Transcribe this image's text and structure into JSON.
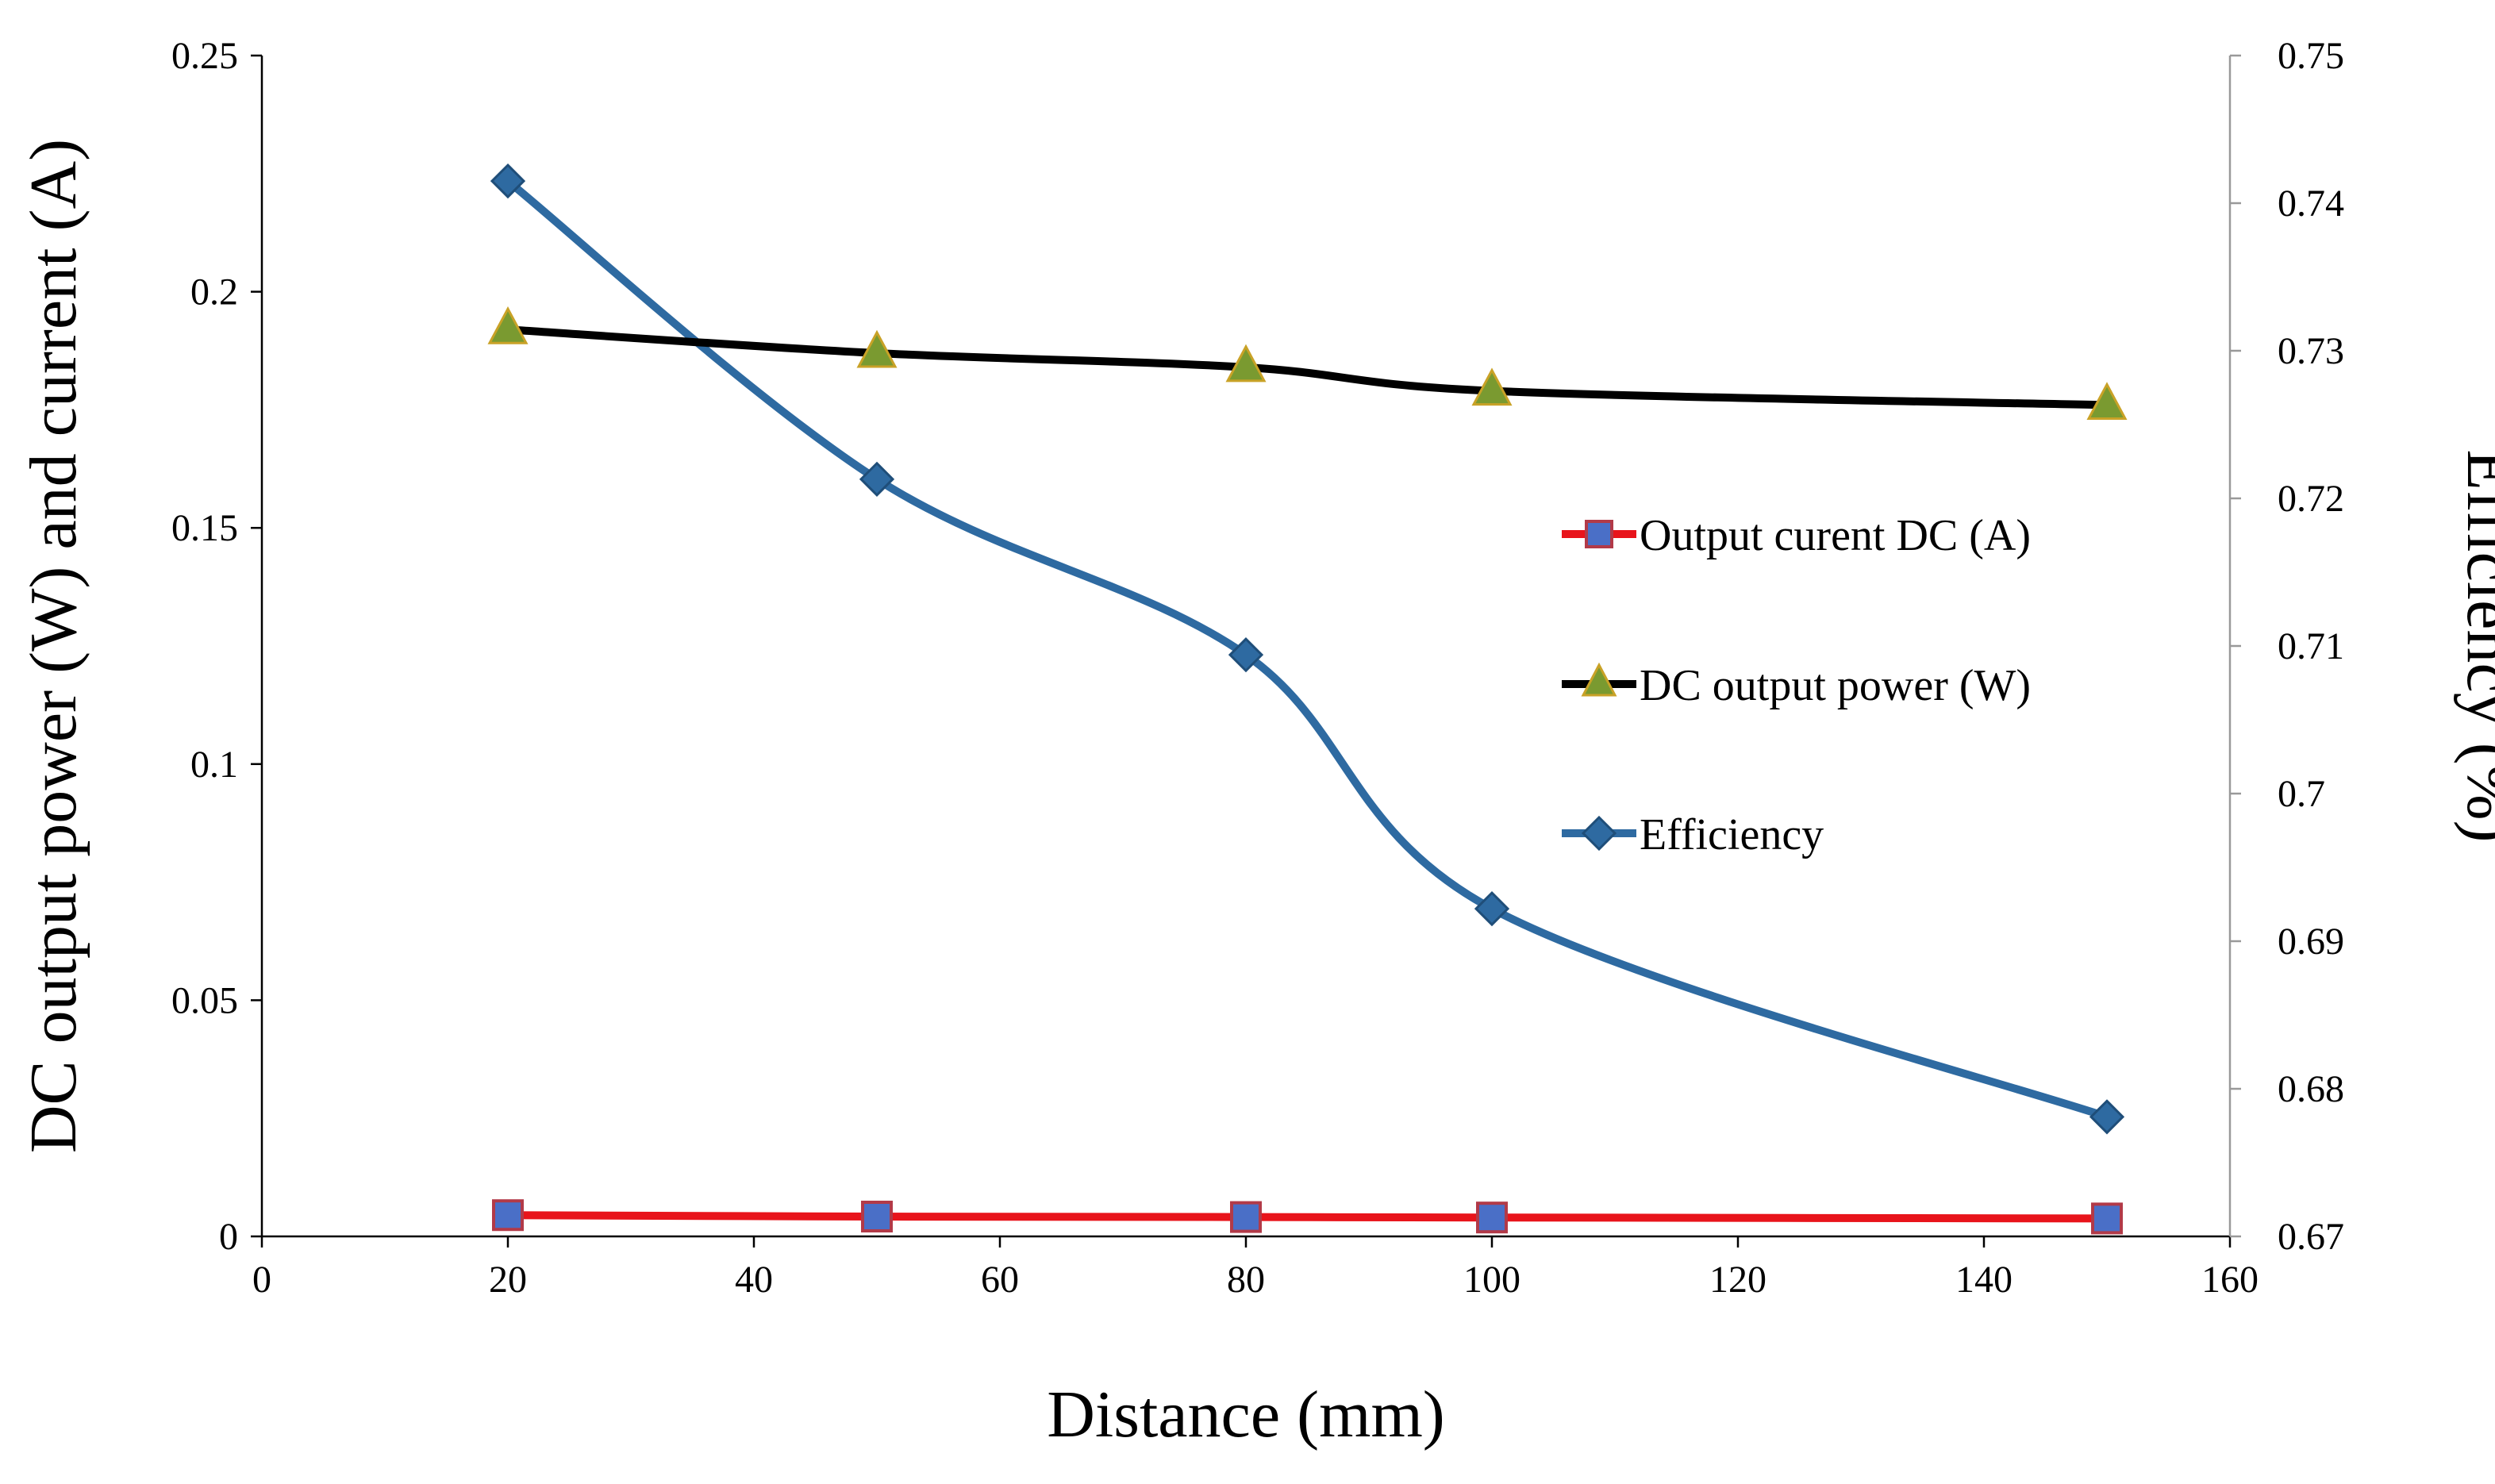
{
  "chart_data": {
    "type": "line",
    "title": "",
    "xlabel": "Distance (mm)",
    "ylabel_left": "DC output power (W) and current (A)",
    "ylabel_right": "Efficiency (%)",
    "xlim": [
      0,
      160
    ],
    "ylim_left": [
      0,
      0.25
    ],
    "ylim_right": [
      0.67,
      0.75
    ],
    "x_ticks": [
      "0",
      "20",
      "40",
      "60",
      "80",
      "100",
      "120",
      "140",
      "160"
    ],
    "y_left_ticks": [
      "0",
      "0.05",
      "0.1",
      "0.15",
      "0.2",
      "0.25"
    ],
    "y_right_ticks": [
      "0.67",
      "0.68",
      "0.69",
      "0.7",
      "0.71",
      "0.72",
      "0.73",
      "0.74",
      "0.75"
    ],
    "x": [
      20,
      50,
      80,
      100,
      150
    ],
    "series": [
      {
        "name": "Output curent DC (A)",
        "axis": "left",
        "values": [
          0.0045,
          0.0042,
          0.0041,
          0.004,
          0.0038
        ],
        "marker": "square",
        "line_color": "#e8141b",
        "marker_color": "#4a6fc7",
        "marker_edge": "#b23a48"
      },
      {
        "name": "DC output power (W)",
        "axis": "left",
        "values": [
          0.192,
          0.187,
          0.184,
          0.179,
          0.176
        ],
        "marker": "triangle",
        "line_color": "#000000",
        "marker_color": "#7a9a30",
        "marker_edge": "#c9a227"
      },
      {
        "name": "Efficiency",
        "axis": "right",
        "values": [
          0.7415,
          0.7213,
          0.7094,
          0.6922,
          0.6781
        ],
        "marker": "diamond",
        "line_color": "#2e6aa1",
        "marker_color": "#2e6aa1",
        "marker_edge": "#1f4e79"
      }
    ],
    "legend_position": "center-right",
    "grid": false
  }
}
